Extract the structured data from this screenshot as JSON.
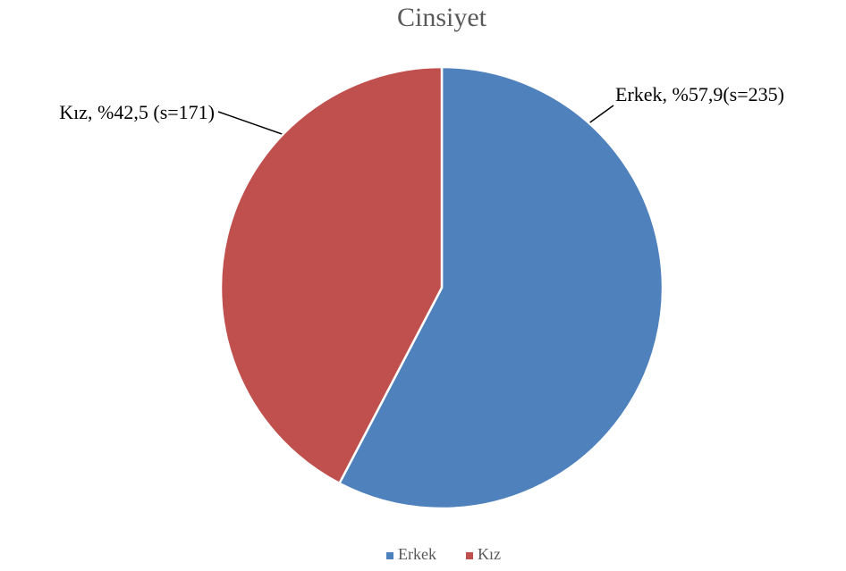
{
  "chart_data": {
    "type": "pie",
    "title": "Cinsiyet",
    "categories": [
      "Erkek",
      "Kız"
    ],
    "values": [
      57.9,
      42.5
    ],
    "value_labels": [
      "Erkek, %57,9(s=235)",
      "Kız, %42,5 (s=171)"
    ],
    "colors": [
      "#4f81bd",
      "#c0504d"
    ],
    "legend": "bottom"
  }
}
